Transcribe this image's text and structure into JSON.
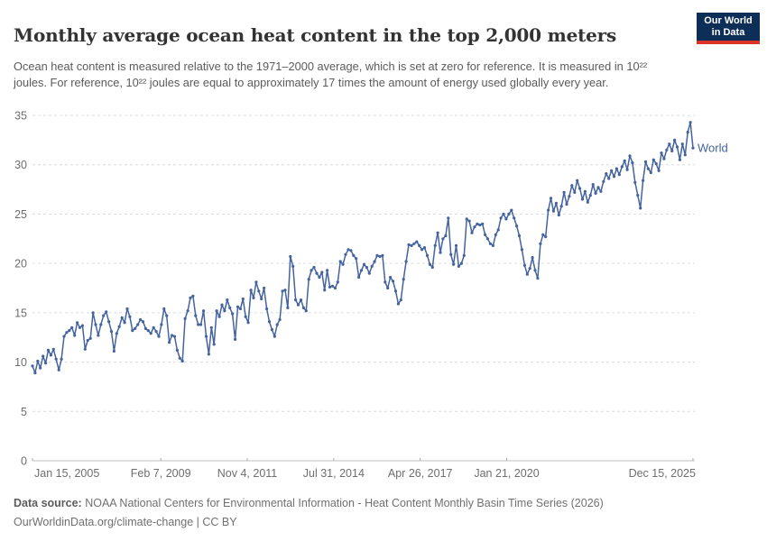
{
  "header": {
    "title": "Monthly average ocean heat content in the top 2,000 meters",
    "subtitle": "Ocean heat content is measured relative to the 1971–2000 average, which is set at zero for reference. It is measured in 10²² joules. For reference, 10²² joules are equal to approximately 17 times the amount of energy used globally every year.",
    "logo": {
      "line1": "Our World",
      "line2": "in Data"
    }
  },
  "chart_data": {
    "type": "line",
    "title": "Monthly average ocean heat content in the top 2,000 meters",
    "unit": "10²² joules",
    "grid": "horizontal-dashed",
    "legend_position": "end-of-line",
    "end_label": "World",
    "ylim": [
      0,
      35
    ],
    "y_ticks": [
      0,
      5,
      10,
      15,
      20,
      25,
      30,
      35
    ],
    "x_range_years": [
      2005.042,
      2025.958
    ],
    "x_ticks": [
      {
        "label": "Jan 15, 2005",
        "year": 2005.042
      },
      {
        "label": "Feb 7, 2009",
        "year": 2009.104
      },
      {
        "label": "Nov 4, 2011",
        "year": 2011.843
      },
      {
        "label": "Jul 31, 2014",
        "year": 2014.581
      },
      {
        "label": "Apr 26, 2017",
        "year": 2017.32
      },
      {
        "label": "Jan 21, 2020",
        "year": 2020.058
      },
      {
        "label": "Dec 15, 2025",
        "year": 2025.956
      }
    ],
    "series": [
      {
        "name": "World",
        "color": "#44639f",
        "start_month": "2005-01",
        "end_month": "2025-12",
        "values": [
          9.6,
          8.9,
          10.1,
          9.4,
          10.6,
          9.9,
          11.2,
          10.7,
          11.3,
          10.3,
          9.2,
          10.3,
          12.6,
          13.0,
          13.2,
          13.5,
          12.7,
          14.0,
          13.5,
          13.7,
          11.3,
          12.2,
          12.4,
          15.0,
          13.8,
          12.7,
          13.8,
          14.7,
          15.1,
          14.1,
          13.1,
          11.1,
          12.9,
          13.6,
          14.5,
          14.0,
          15.4,
          14.6,
          13.2,
          13.4,
          13.8,
          14.3,
          14.1,
          13.4,
          13.2,
          12.9,
          13.5,
          13.1,
          12.6,
          13.8,
          15.4,
          14.7,
          12.0,
          12.7,
          12.6,
          11.2,
          10.4,
          10.1,
          14.4,
          15.2,
          16.5,
          16.7,
          14.7,
          13.8,
          13.8,
          15.2,
          12.6,
          10.8,
          13.5,
          11.8,
          15.2,
          14.6,
          15.8,
          15.2,
          16.3,
          15.5,
          14.9,
          12.3,
          15.6,
          15.4,
          16.4,
          14.6,
          14.0,
          17.3,
          16.5,
          18.1,
          17.2,
          16.4,
          17.5,
          15.4,
          14.1,
          13.3,
          12.6,
          13.8,
          14.3,
          17.2,
          17.3,
          15.5,
          20.7,
          19.7,
          16.3,
          15.8,
          16.3,
          15.5,
          15.2,
          18.4,
          19.3,
          19.6,
          19.0,
          18.6,
          19.1,
          17.3,
          19.3,
          17.6,
          17.7,
          17.5,
          18.1,
          20.2,
          19.9,
          20.9,
          21.4,
          21.3,
          20.8,
          20.5,
          18.6,
          19.3,
          19.9,
          19.6,
          19.0,
          19.7,
          20.2,
          20.8,
          20.7,
          20.8,
          18.1,
          17.5,
          18.6,
          18.2,
          17.2,
          15.9,
          16.3,
          18.4,
          20.2,
          21.9,
          21.8,
          22.0,
          22.2,
          21.8,
          21.4,
          21.6,
          20.8,
          19.9,
          19.6,
          21.8,
          23.1,
          21.1,
          22.5,
          22.8,
          24.6,
          20.9,
          19.9,
          21.8,
          19.7,
          20.0,
          20.8,
          24.5,
          24.3,
          23.1,
          23.7,
          24.0,
          23.9,
          24.0,
          22.9,
          22.5,
          22.0,
          21.8,
          22.9,
          23.4,
          24.6,
          25.0,
          24.5,
          25.0,
          25.4,
          24.6,
          23.8,
          22.8,
          21.4,
          19.8,
          18.9,
          19.5,
          20.6,
          19.3,
          18.5,
          22.0,
          22.9,
          22.7,
          25.4,
          26.6,
          25.3,
          26.1,
          24.9,
          25.8,
          27.2,
          26.0,
          26.8,
          27.9,
          27.2,
          28.4,
          27.6,
          26.5,
          27.3,
          26.2,
          26.9,
          28.0,
          27.1,
          27.7,
          27.3,
          28.3,
          29.1,
          28.6,
          29.4,
          28.8,
          29.6,
          29.0,
          29.8,
          30.4,
          29.5,
          30.9,
          30.2,
          28.2,
          26.9,
          25.6,
          28.4,
          30.3,
          29.6,
          29.2,
          30.5,
          30.1,
          29.4,
          31.2,
          30.6,
          31.5,
          32.1,
          31.4,
          32.5,
          31.8,
          30.5,
          32.1,
          31.0,
          33.3,
          34.3,
          31.7
        ]
      }
    ],
    "style": {
      "grid_color": "#dcdcdc",
      "axis_color": "#c0c0c0",
      "tick_color": "#a8a8a8",
      "axis_text_color": "#6e6e6e"
    }
  },
  "footer": {
    "source_label": "Data source:",
    "source_text": " NOAA National Centers for Environmental Information - Heat Content Monthly Basin Time Series (2026)",
    "note": "OurWorldinData.org/climate-change | CC BY"
  }
}
